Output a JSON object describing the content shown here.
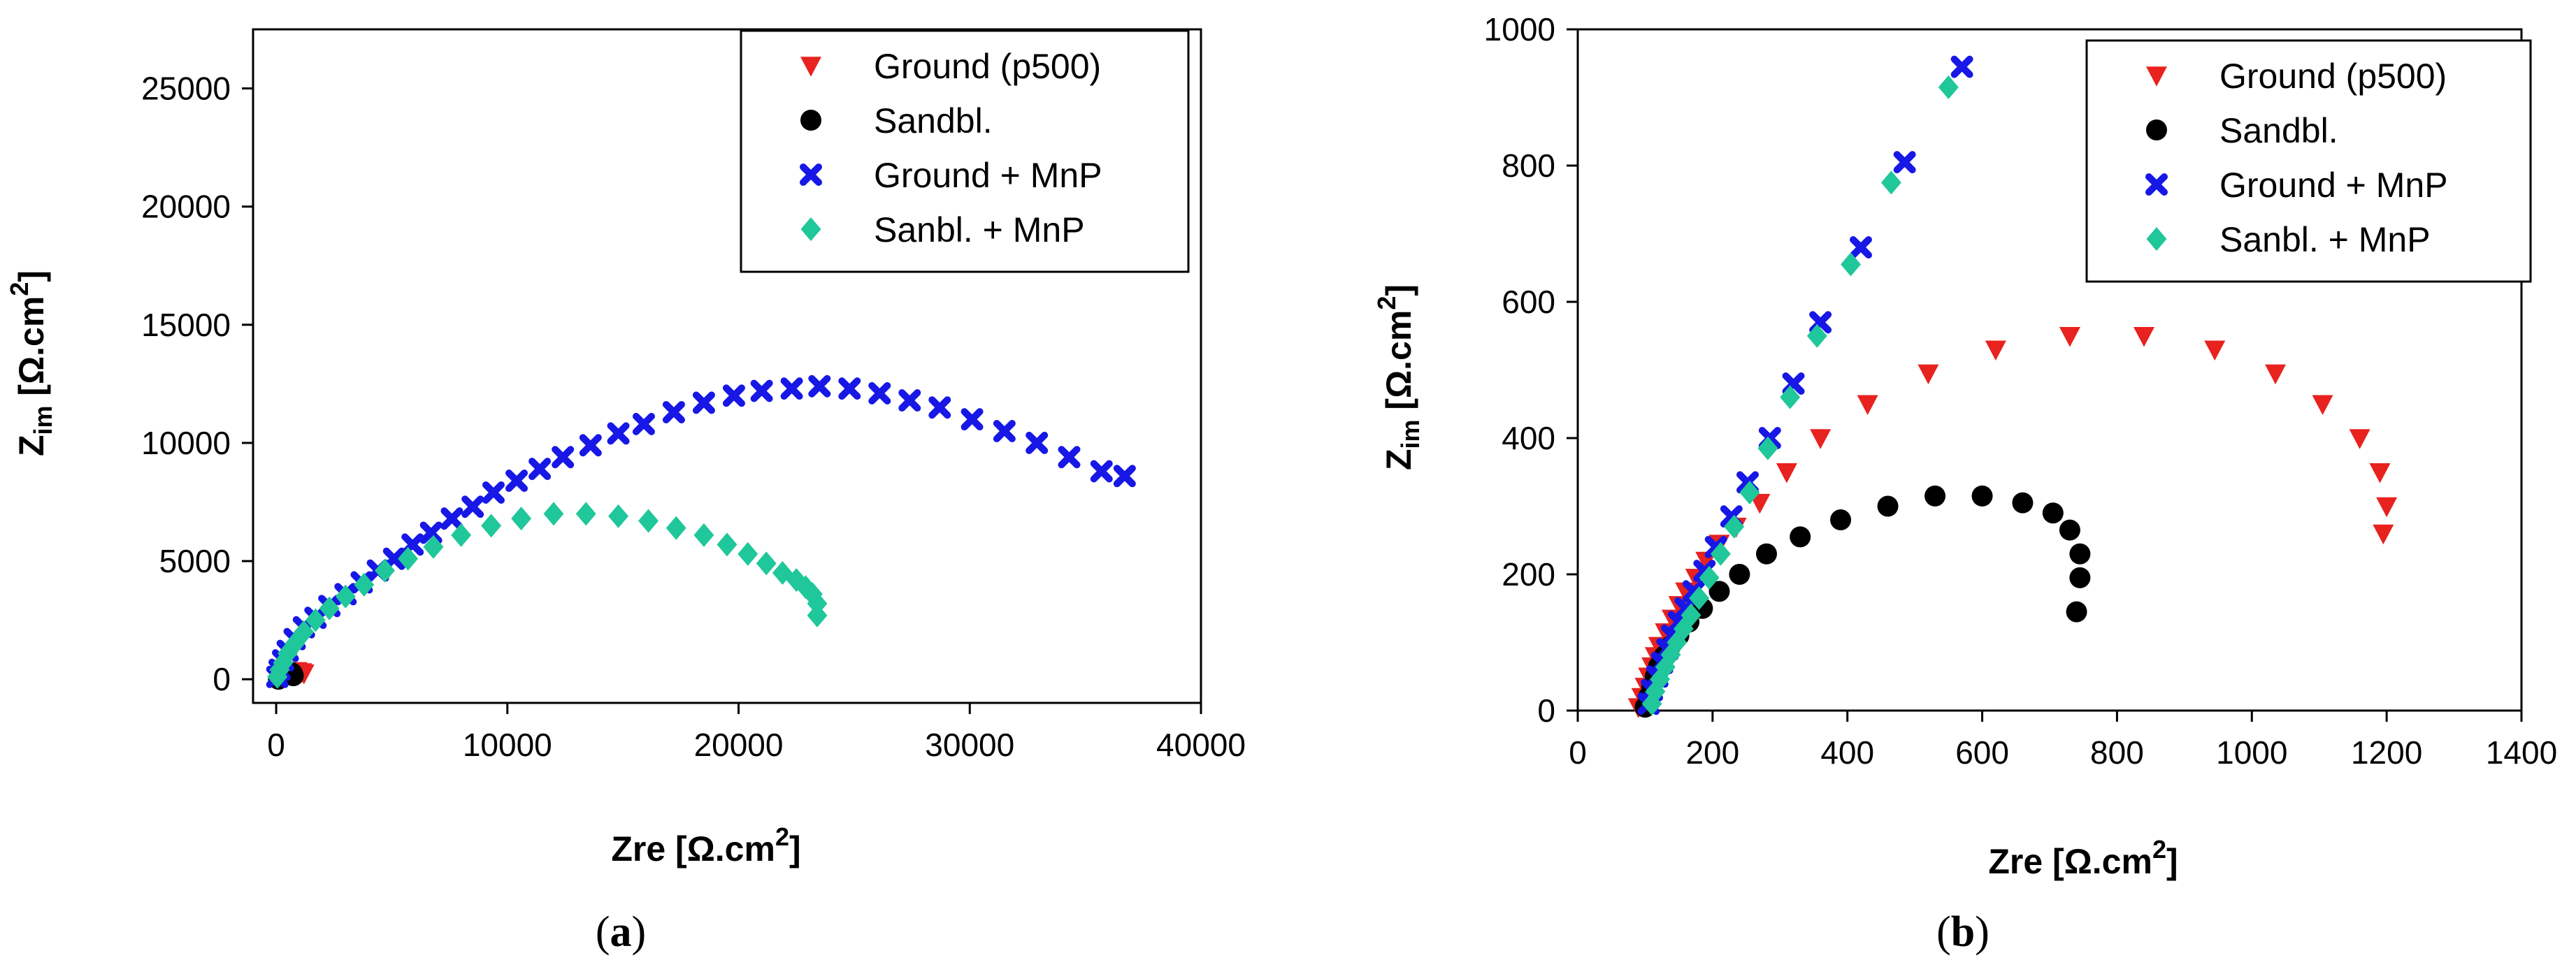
{
  "chart_data": [
    {
      "type": "scatter",
      "panel_label": "(a)",
      "xlabel": "Zre [Ω.cm",
      "xlabel_sup": "2",
      "xlabel_end": "]",
      "ylabel_main": "Z",
      "ylabel_sub": "im",
      "ylabel_rest": " [Ω.cm",
      "ylabel_sup": "2",
      "ylabel_end": "]",
      "xlim": [
        -1000,
        40000
      ],
      "ylim": [
        -1000,
        27500
      ],
      "xticks": [
        "0",
        "10000",
        "20000",
        "30000",
        "40000"
      ],
      "yticks": [
        "0",
        "5000",
        "10000",
        "15000",
        "20000",
        "25000"
      ],
      "legend_position": "top-right",
      "series": [
        {
          "name": "Ground (p500)",
          "marker": "triangle-down",
          "color": "#e8221e",
          "x": [
            100,
            300,
            600,
            900,
            1100,
            1200
          ],
          "y": [
            0,
            180,
            300,
            350,
            300,
            250
          ]
        },
        {
          "name": "Sandbl.",
          "marker": "circle",
          "color": "#000000",
          "x": [
            100,
            250,
            450,
            600,
            700,
            740
          ],
          "y": [
            0,
            220,
            300,
            310,
            250,
            150
          ]
        },
        {
          "name": "Ground + MnP",
          "marker": "x",
          "color": "#1717e6",
          "x": [
            50,
            150,
            300,
            500,
            800,
            1200,
            1700,
            2300,
            3000,
            3700,
            4400,
            5100,
            5900,
            6700,
            7600,
            8500,
            9400,
            10400,
            11400,
            12400,
            13600,
            14800,
            15900,
            17200,
            18500,
            19800,
            21000,
            22300,
            23500,
            24800,
            26100,
            27400,
            28700,
            30100,
            31500,
            32900,
            34300,
            35700,
            36700
          ],
          "y": [
            100,
            400,
            800,
            1200,
            1700,
            2200,
            2600,
            3100,
            3600,
            4100,
            4600,
            5100,
            5700,
            6200,
            6800,
            7300,
            7900,
            8400,
            8900,
            9400,
            9900,
            10400,
            10800,
            11300,
            11700,
            12000,
            12200,
            12300,
            12400,
            12300,
            12100,
            11800,
            11500,
            11000,
            10500,
            10000,
            9400,
            8800,
            8600
          ]
        },
        {
          "name": "Sanbl. + MnP",
          "marker": "diamond",
          "color": "#1fc79a",
          "x": [
            50,
            150,
            300,
            500,
            800,
            1200,
            1700,
            2300,
            3000,
            3800,
            4700,
            5700,
            6800,
            8000,
            9300,
            10600,
            12000,
            13400,
            14800,
            16100,
            17300,
            18500,
            19500,
            20400,
            21200,
            21900,
            22500,
            22900,
            23200,
            23400,
            23400
          ],
          "y": [
            100,
            400,
            700,
            1100,
            1500,
            2000,
            2500,
            3000,
            3500,
            4000,
            4600,
            5100,
            5600,
            6100,
            6500,
            6800,
            7000,
            7000,
            6900,
            6700,
            6400,
            6100,
            5700,
            5300,
            4900,
            4500,
            4200,
            3900,
            3600,
            3200,
            2700
          ]
        }
      ]
    },
    {
      "type": "scatter",
      "panel_label": "(b)",
      "xlabel": "Zre [Ω.cm",
      "xlabel_sup": "2",
      "xlabel_end": "]",
      "ylabel_main": "Z",
      "ylabel_sub": "im",
      "ylabel_rest": " [Ω.cm",
      "ylabel_sup": "2",
      "ylabel_end": "]",
      "xlim": [
        0,
        1400
      ],
      "ylim": [
        0,
        1000
      ],
      "xticks": [
        "0",
        "200",
        "400",
        "600",
        "800",
        "1000",
        "1200",
        "1400"
      ],
      "yticks": [
        "0",
        "200",
        "400",
        "600",
        "800",
        "1000"
      ],
      "legend_position": "top-right",
      "series": [
        {
          "name": "Ground (p500)",
          "marker": "triangle-down",
          "color": "#e8221e",
          "x": [
            90,
            95,
            100,
            105,
            110,
            115,
            120,
            130,
            140,
            150,
            160,
            175,
            190,
            210,
            235,
            270,
            310,
            360,
            430,
            520,
            620,
            730,
            840,
            945,
            1035,
            1105,
            1160,
            1190,
            1200,
            1195
          ],
          "y": [
            5,
            20,
            35,
            50,
            65,
            80,
            95,
            115,
            135,
            155,
            175,
            195,
            220,
            245,
            270,
            305,
            350,
            400,
            450,
            495,
            530,
            550,
            550,
            530,
            495,
            450,
            400,
            350,
            300,
            260
          ]
        },
        {
          "name": "Sandbl.",
          "marker": "circle",
          "color": "#000000",
          "x": [
            100,
            105,
            110,
            115,
            120,
            128,
            138,
            150,
            165,
            185,
            210,
            240,
            280,
            330,
            390,
            460,
            530,
            600,
            660,
            705,
            730,
            745,
            745,
            740
          ],
          "y": [
            5,
            20,
            35,
            50,
            65,
            80,
            95,
            110,
            130,
            150,
            175,
            200,
            230,
            255,
            280,
            300,
            315,
            315,
            305,
            290,
            265,
            230,
            195,
            145
          ]
        },
        {
          "name": "Ground + MnP",
          "marker": "x",
          "color": "#1717e6",
          "x": [
            105,
            110,
            118,
            125,
            133,
            140,
            150,
            160,
            172,
            188,
            205,
            228,
            252,
            285,
            320,
            360,
            420,
            485,
            570
          ],
          "y": [
            10,
            30,
            50,
            70,
            90,
            110,
            130,
            150,
            175,
            205,
            240,
            285,
            335,
            400,
            480,
            570,
            680,
            805,
            945
          ]
        },
        {
          "name": "Sanbl. + MnP",
          "marker": "diamond",
          "color": "#1fc79a",
          "x": [
            110,
            115,
            122,
            130,
            138,
            147,
            157,
            168,
            180,
            195,
            212,
            232,
            255,
            282,
            315,
            355,
            405,
            465,
            550
          ],
          "y": [
            10,
            28,
            46,
            64,
            82,
            100,
            120,
            140,
            165,
            195,
            230,
            270,
            320,
            385,
            460,
            550,
            655,
            775,
            915
          ]
        }
      ]
    }
  ]
}
